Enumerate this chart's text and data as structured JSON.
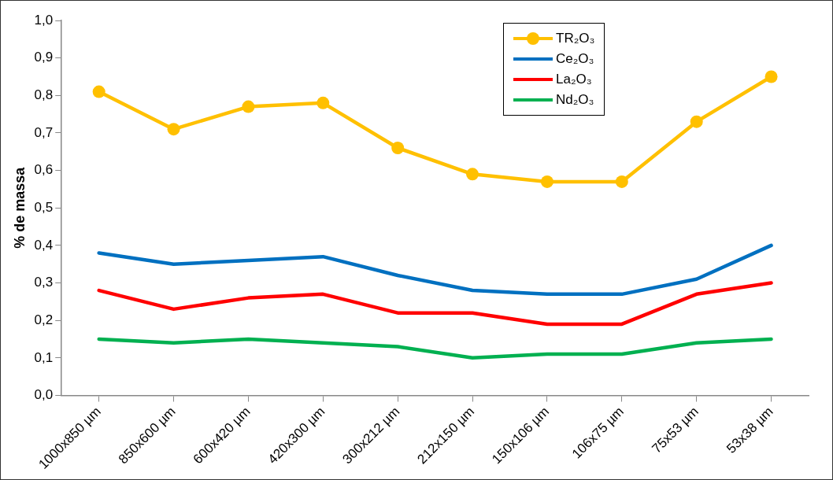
{
  "chart_data": {
    "type": "line",
    "ylabel": "% de massa",
    "categories": [
      "1000x850 µm",
      "850x600 µm",
      "600x420 µm",
      "420x300 µm",
      "300x212 µm",
      "212x150 µm",
      "150x106 µm",
      "106x75 µm",
      "75x53 µm",
      "53x38 µm"
    ],
    "series": [
      {
        "name": "TR₂O₃",
        "color": "#ffc000",
        "marker": "circle",
        "values": [
          0.81,
          0.71,
          0.77,
          0.78,
          0.66,
          0.59,
          0.57,
          0.57,
          0.73,
          0.85
        ]
      },
      {
        "name": "Ce₂O₃",
        "color": "#0070c0",
        "marker": "none",
        "values": [
          0.38,
          0.35,
          0.36,
          0.37,
          0.32,
          0.28,
          0.27,
          0.27,
          0.31,
          0.4
        ]
      },
      {
        "name": "La₂O₃",
        "color": "#ff0000",
        "marker": "none",
        "values": [
          0.28,
          0.23,
          0.26,
          0.27,
          0.22,
          0.22,
          0.19,
          0.19,
          0.27,
          0.3
        ]
      },
      {
        "name": "Nd₂O₃",
        "color": "#00b050",
        "marker": "none",
        "values": [
          0.15,
          0.14,
          0.15,
          0.14,
          0.13,
          0.1,
          0.11,
          0.11,
          0.14,
          0.15
        ]
      }
    ],
    "ylim": [
      0,
      1
    ],
    "yticks": [
      {
        "value": 0,
        "label": "0,0"
      },
      {
        "value": 0.1,
        "label": "0,1"
      },
      {
        "value": 0.2,
        "label": "0,2"
      },
      {
        "value": 0.3,
        "label": "0,3"
      },
      {
        "value": 0.4,
        "label": "0,4"
      },
      {
        "value": 0.5,
        "label": "0,5"
      },
      {
        "value": 0.6,
        "label": "0,6"
      },
      {
        "value": 0.7,
        "label": "0,7"
      },
      {
        "value": 0.8,
        "label": "0,8"
      },
      {
        "value": 0.9,
        "label": "0,9"
      },
      {
        "value": 1,
        "label": "1,0"
      }
    ],
    "grid": false,
    "legend": "top right",
    "line_style": "solid"
  }
}
